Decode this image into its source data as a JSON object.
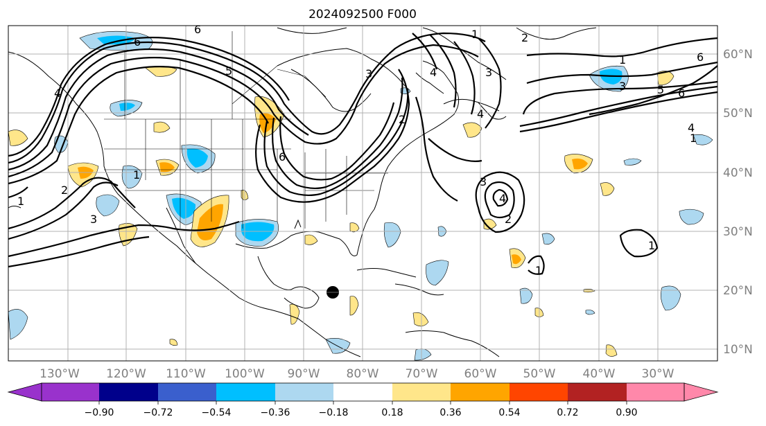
{
  "title": "2024092500 F000",
  "longitude_labels": [
    "130°W",
    "120°W",
    "110°W",
    "100°W",
    "90°W",
    "80°W",
    "70°W",
    "60°W",
    "50°W",
    "40°W",
    "30°W"
  ],
  "latitude_labels": [
    "60°N",
    "50°N",
    "40°N",
    "30°N",
    "20°N",
    "10°N"
  ],
  "colorbar": {
    "tick_labels": [
      "−0.90",
      "−0.72",
      "−0.54",
      "−0.36",
      "−0.18",
      "0.18",
      "0.36",
      "0.54",
      "0.72",
      "0.90"
    ],
    "colors": [
      "#9932cc",
      "#00008b",
      "#3a5fcd",
      "#00bfff",
      "#add8f0",
      "#ffffff",
      "#ffe68a",
      "#ffa500",
      "#ff4500",
      "#b22222",
      "#ff88aa"
    ]
  },
  "contour_labels": [
    "6",
    "6",
    "5",
    "4",
    "3",
    "2",
    "1",
    "2",
    "3",
    "4",
    "1",
    "1",
    "3",
    "5",
    "6",
    "1",
    "6",
    "4",
    "6",
    "3",
    "4",
    "2",
    "1",
    "1",
    "2",
    "3",
    "4",
    "1"
  ],
  "colors": {
    "land_outline": "#000000",
    "grid": "#b0b0b0",
    "negative_fill": "#00bfff",
    "weak_negative_fill": "#add8f0",
    "positive_fill": "#ffe68a",
    "strong_positive_fill": "#ffa500"
  },
  "icons": [
    "storm-center-marker"
  ]
}
